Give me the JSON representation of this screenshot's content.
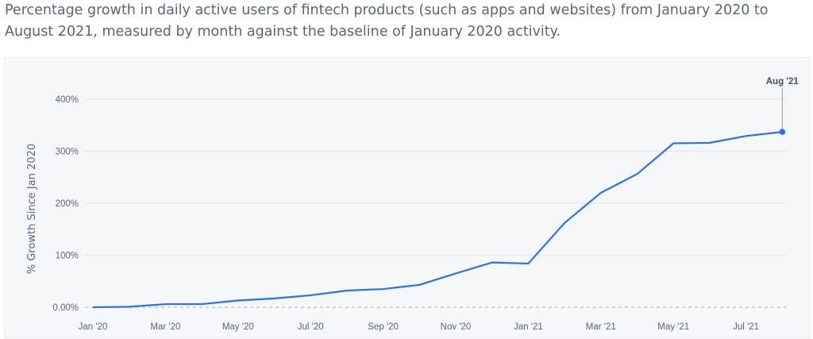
{
  "caption": "Percentage growth in daily active users of fintech products (such as apps and websites) from January 2020 to August 2021, measured by month against the baseline of January 2020 activity.",
  "chart_data": {
    "type": "line",
    "title": "",
    "xlabel": "",
    "ylabel": "% Growth Since Jan 2020",
    "ylim": [
      0,
      400
    ],
    "yticks": [
      0,
      100,
      200,
      300,
      400
    ],
    "ytick_labels": [
      "0.00%",
      "100%",
      "200%",
      "300%",
      "400%"
    ],
    "x": [
      "Jan '20",
      "Feb '20",
      "Mar '20",
      "Apr '20",
      "May '20",
      "Jun '20",
      "Jul '20",
      "Aug '20",
      "Sep '20",
      "Oct '20",
      "Nov '20",
      "Dec '20",
      "Jan '21",
      "Feb '21",
      "Mar '21",
      "Apr '21",
      "May '21",
      "Jun '21",
      "Jul '21",
      "Aug '21"
    ],
    "xtick_labels": [
      "Jan '20",
      "Mar '20",
      "May '20",
      "Jul '20",
      "Sep '20",
      "Nov '20",
      "Jan '21",
      "Mar '21",
      "May '21",
      "Jul '21"
    ],
    "values": [
      0,
      1,
      6,
      6,
      13,
      17,
      23,
      32,
      35,
      43,
      65,
      86,
      84,
      162,
      220,
      256,
      315,
      316,
      329,
      337
    ],
    "annotation": "Aug '21",
    "grid": true,
    "line_color": "#2f6ef2",
    "background": "#f6f7f9"
  }
}
